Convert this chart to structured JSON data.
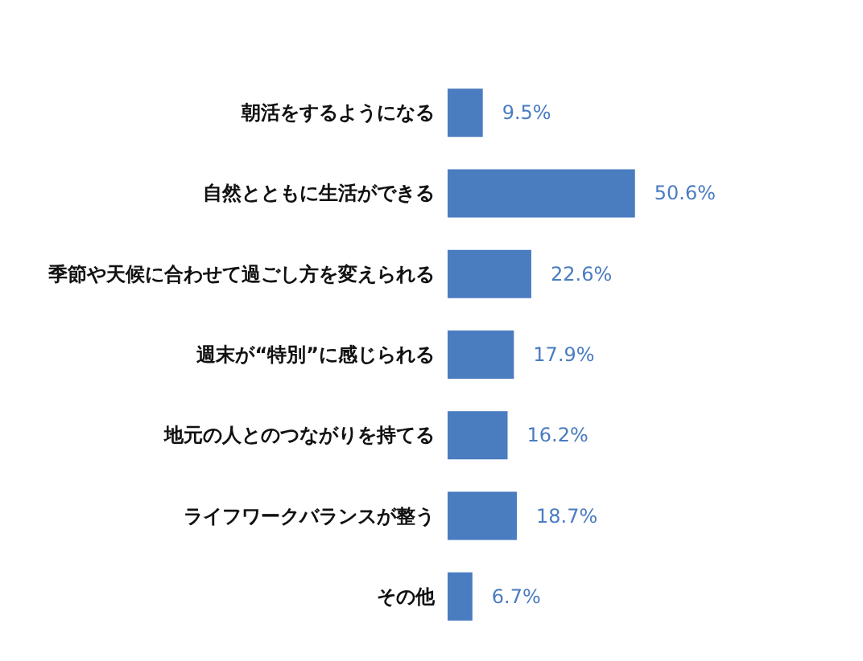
{
  "chart_data": {
    "type": "bar",
    "orientation": "horizontal",
    "categories": [
      "朝活をするようになる",
      "自然とともに生活ができる",
      "季節や天候に合わせて過ごし方を変えられる",
      "週末が“特別”に感じられる",
      "地元の人とのつながりを持てる",
      "ライフワークバランスが整う",
      "その他"
    ],
    "values": [
      9.5,
      50.6,
      22.6,
      17.9,
      16.2,
      18.7,
      6.7
    ],
    "value_labels": [
      "9.5%",
      "50.6%",
      "22.6%",
      "17.9%",
      "16.2%",
      "18.7%",
      "6.7%"
    ],
    "color": "#4a7cc0",
    "tick_labels": "y"
  }
}
